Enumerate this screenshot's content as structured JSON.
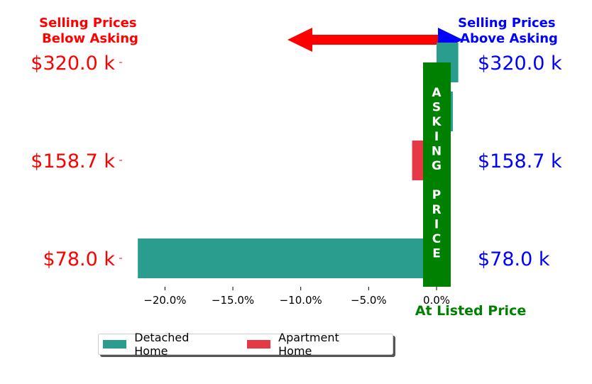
{
  "header": {
    "left_title": [
      "Selling Prices",
      "Below Asking"
    ],
    "right_title": [
      "Selling Prices",
      "Above Asking"
    ],
    "left_color": "#ff0000",
    "right_color": "#0000ff"
  },
  "asking_banner": {
    "lines": [
      "A",
      "S",
      "K",
      "I",
      "N",
      "G",
      "",
      "P",
      "R",
      "I",
      "C",
      "E"
    ],
    "color": "#008000"
  },
  "bottom_label": {
    "text": "At Listed Price",
    "color": "#008000"
  },
  "chart_data": {
    "type": "bar",
    "orientation": "horizontal",
    "categories": [
      "$78.0 k",
      "$158.7 k",
      "$320.0 k"
    ],
    "left_tick_labels": [
      "$78.0 k",
      "$158.7 k",
      "$320.0 k"
    ],
    "right_tick_labels": [
      "$78.0 k",
      "$158.7 k",
      "$320.0 k"
    ],
    "series": [
      {
        "name": "Detached Home",
        "color": "#2a9d8f",
        "values": [
          -22.0,
          1.2,
          1.6
        ]
      },
      {
        "name": "Apartment Home",
        "color": "#e63946",
        "values": [
          null,
          null,
          -1.8
        ]
      }
    ],
    "bar_rows": [
      {
        "series": 0,
        "position": 0.0,
        "value": -22.0
      },
      {
        "series": 1,
        "position": 1.0,
        "value": -1.8
      },
      {
        "series": 0,
        "position": 1.5,
        "value": 1.2
      },
      {
        "series": 0,
        "position": 2.0,
        "value": 1.6
      }
    ],
    "xticks": [
      -20,
      -15,
      -10,
      -5,
      0
    ],
    "xtick_labels": [
      "−20.0%",
      "−15.0%",
      "−10.0%",
      "−5.0%",
      "0.0%"
    ],
    "xlim": [
      -23.0,
      0.0
    ],
    "grid": false,
    "legend_position": "bottom-left"
  }
}
